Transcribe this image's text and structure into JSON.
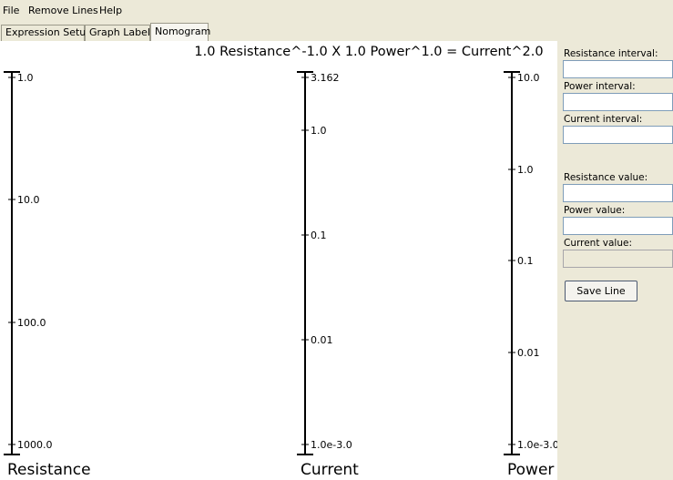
{
  "menu": {
    "file": "File",
    "remove_lines": "Remove Lines",
    "help": "Help"
  },
  "tabs": {
    "expression_setup": "Expression Setup",
    "graph_labels": "Graph Labels",
    "nomogram": "Nomogram"
  },
  "nomogram": {
    "equation": "1.0 Resistance^-1.0 X 1.0 Power^1.0 = Current^2.0",
    "axes": [
      {
        "name": "Resistance",
        "ticks": [
          "1.0",
          "10.0",
          "100.0",
          "1000.0"
        ]
      },
      {
        "name": "Current",
        "ticks": [
          "3.162",
          "1.0",
          "0.1",
          "0.01",
          "1.0e-3.0"
        ]
      },
      {
        "name": "Power",
        "ticks": [
          "10.0",
          "1.0",
          "0.1",
          "0.01",
          "1.0e-3.0"
        ]
      }
    ]
  },
  "side": {
    "resistance_interval_label": "Resistance interval:",
    "resistance_interval_value": "",
    "power_interval_label": "Power interval:",
    "power_interval_value": "",
    "current_interval_label": "Current interval:",
    "current_interval_value": "",
    "resistance_value_label": "Resistance value:",
    "resistance_value": "",
    "power_value_label": "Power value:",
    "power_value": "",
    "current_value_label": "Current value:",
    "current_value": "",
    "save_line": "Save Line"
  }
}
